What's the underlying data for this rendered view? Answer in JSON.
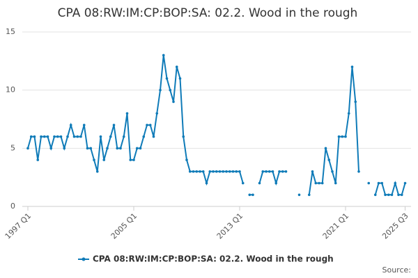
{
  "chart_data": {
    "type": "line",
    "title": "CPA 08:RW:IM:CP:BOP:SA: 02.2. Wood in the rough",
    "source": "Source:",
    "categories": [
      "1997 Q1",
      null,
      null,
      null,
      null,
      null,
      null,
      null,
      null,
      null,
      null,
      null,
      null,
      null,
      null,
      null,
      null,
      null,
      null,
      null,
      null,
      null,
      null,
      null,
      null,
      null,
      null,
      null,
      null,
      null,
      null,
      null,
      "2005 Q1",
      null,
      null,
      null,
      null,
      null,
      null,
      null,
      null,
      null,
      null,
      null,
      null,
      null,
      null,
      null,
      null,
      null,
      null,
      null,
      null,
      null,
      null,
      null,
      null,
      null,
      null,
      null,
      null,
      null,
      null,
      null,
      "2013 Q1",
      null,
      null,
      null,
      null,
      null,
      null,
      null,
      null,
      null,
      null,
      null,
      null,
      null,
      null,
      null,
      null,
      null,
      null,
      null,
      null,
      null,
      null,
      null,
      null,
      null,
      null,
      null,
      null,
      null,
      null,
      null,
      "2021 Q1",
      null,
      null,
      null,
      null,
      null,
      null,
      null,
      null,
      null,
      null,
      null,
      null,
      null,
      null,
      null,
      null,
      null,
      "2025 Q3"
    ],
    "series": [
      {
        "name": "CPA 08:RW:IM:CP:BOP:SA: 02.2. Wood in the rough",
        "color": "#0f7bb8",
        "values": [
          5,
          6,
          6,
          4,
          6,
          6,
          6,
          5,
          6,
          6,
          6,
          5,
          6,
          7,
          6,
          6,
          6,
          7,
          5,
          5,
          4,
          3,
          6,
          4,
          5,
          6,
          7,
          5,
          5,
          6,
          8,
          4,
          4,
          5,
          5,
          6,
          7,
          7,
          6,
          8,
          10,
          13,
          11,
          10,
          9,
          12,
          11,
          6,
          4,
          3,
          3,
          3,
          3,
          3,
          2,
          3,
          3,
          3,
          3,
          3,
          3,
          3,
          3,
          3,
          3,
          2,
          null,
          1,
          1,
          null,
          2,
          3,
          3,
          3,
          3,
          2,
          3,
          3,
          3,
          null,
          null,
          null,
          1,
          null,
          null,
          1,
          3,
          2,
          2,
          2,
          5,
          4,
          3,
          2,
          6,
          6,
          6,
          8,
          12,
          9,
          3,
          null,
          null,
          2,
          null,
          1,
          2,
          2,
          1,
          1,
          1,
          2,
          1,
          1,
          2
        ]
      }
    ],
    "ylim": [
      0,
      15
    ],
    "yticks": [
      0,
      5,
      10,
      15
    ],
    "grid": true
  }
}
